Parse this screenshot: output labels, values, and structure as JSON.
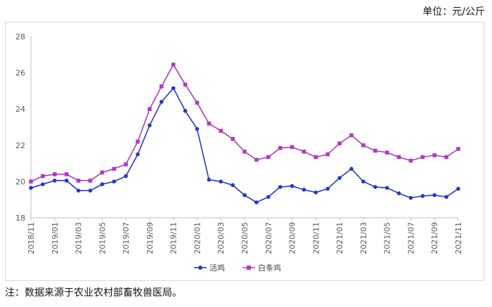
{
  "unit_label": "单位：元/公斤",
  "note": "注：数据来源于农业农村部畜牧兽医局。",
  "chart_data": {
    "type": "line",
    "title": "",
    "xlabel": "",
    "ylabel": "",
    "ylim": [
      18,
      28
    ],
    "yticks": [
      18,
      20,
      22,
      24,
      26,
      28
    ],
    "grid": false,
    "legend_position": "bottom",
    "x": [
      "2018/11",
      "2018/12",
      "2019/01",
      "2019/02",
      "2019/03",
      "2019/04",
      "2019/05",
      "2019/06",
      "2019/07",
      "2019/08",
      "2019/09",
      "2019/10",
      "2019/11",
      "2019/12",
      "2020/01",
      "2020/02",
      "2020/03",
      "2020/04",
      "2020/05",
      "2020/06",
      "2020/07",
      "2020/08",
      "2020/09",
      "2020/10",
      "2020/11",
      "2020/12",
      "2021/01",
      "2021/02",
      "2021/03",
      "2021/04",
      "2021/05",
      "2021/06",
      "2021/07",
      "2021/08",
      "2021/09",
      "2021/10",
      "2021/11"
    ],
    "x_tick_labels": [
      "2018/11",
      "2019/01",
      "2019/03",
      "2019/05",
      "2019/07",
      "2019/09",
      "2019/11",
      "2020/01",
      "2020/03",
      "2020/05",
      "2020/07",
      "2020/09",
      "2020/11",
      "2021/01",
      "2021/03",
      "2021/05",
      "2021/07",
      "2021/09",
      "2021/11"
    ],
    "series": [
      {
        "name": "活鸡",
        "color": "#2338cc",
        "marker": "circle",
        "values": [
          19.65,
          19.85,
          20.05,
          20.05,
          19.5,
          19.5,
          19.85,
          20.0,
          20.3,
          21.5,
          23.1,
          24.4,
          25.15,
          23.9,
          22.9,
          20.1,
          20.0,
          19.8,
          19.25,
          18.85,
          19.15,
          19.7,
          19.75,
          19.55,
          19.4,
          19.6,
          20.2,
          20.7,
          20.0,
          19.7,
          19.65,
          19.35,
          19.1,
          19.2,
          19.25,
          19.15,
          19.6
        ]
      },
      {
        "name": "白条鸡",
        "color": "#b03bbe",
        "marker": "square",
        "values": [
          20.0,
          20.3,
          20.4,
          20.4,
          20.05,
          20.05,
          20.5,
          20.7,
          20.95,
          22.2,
          24.0,
          25.25,
          26.45,
          25.35,
          24.35,
          23.2,
          22.8,
          22.35,
          21.65,
          21.2,
          21.35,
          21.85,
          21.9,
          21.65,
          21.35,
          21.5,
          22.1,
          22.55,
          22.0,
          21.7,
          21.6,
          21.35,
          21.15,
          21.35,
          21.45,
          21.35,
          21.8
        ]
      }
    ]
  }
}
